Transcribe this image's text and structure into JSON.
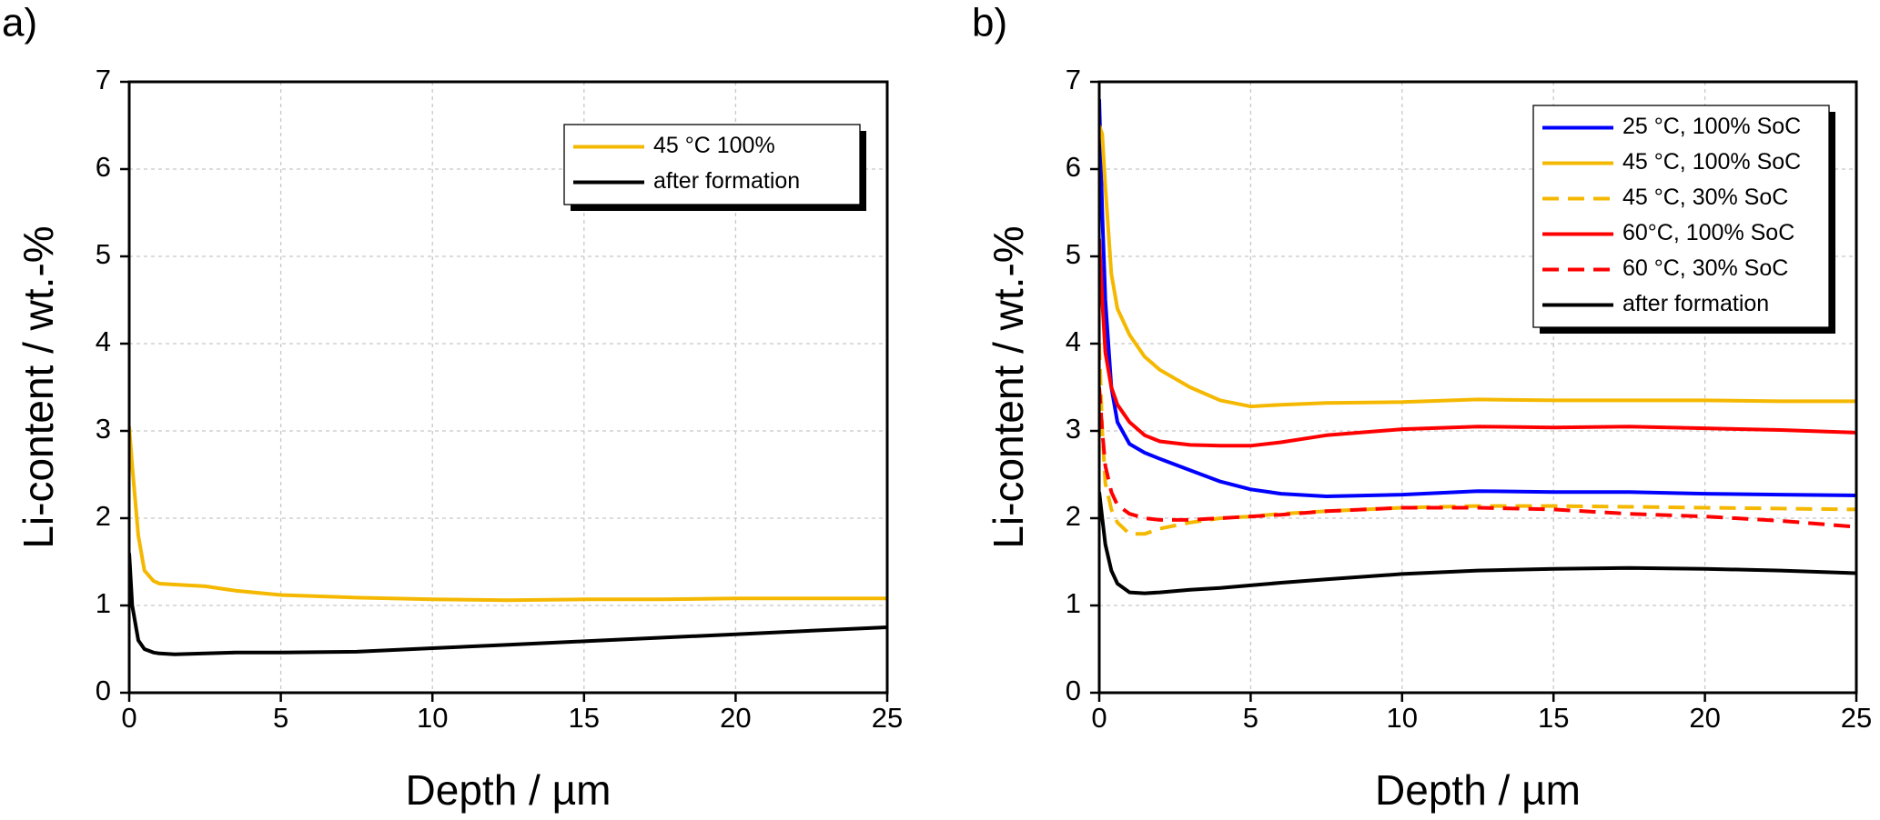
{
  "chart_data": [
    {
      "type": "line",
      "panel_label": "a)",
      "x_label": "Depth / µm",
      "y_label": "Li-content / wt.-%",
      "x": [
        0,
        0.1,
        0.3,
        0.5,
        0.8,
        1,
        1.5,
        2.5,
        3.5,
        5,
        7.5,
        10,
        12.5,
        15,
        17.5,
        20,
        22.5,
        25
      ],
      "series": [
        {
          "name": "45 °C 100%",
          "color": "#f5b800",
          "dashed": false,
          "values": [
            3.05,
            2.6,
            1.8,
            1.4,
            1.28,
            1.25,
            1.24,
            1.22,
            1.17,
            1.12,
            1.09,
            1.07,
            1.06,
            1.07,
            1.07,
            1.08,
            1.08,
            1.08
          ]
        },
        {
          "name": "after formation",
          "color": "#000000",
          "dashed": false,
          "values": [
            1.6,
            1.0,
            0.6,
            0.5,
            0.46,
            0.45,
            0.44,
            0.45,
            0.46,
            0.46,
            0.47,
            0.51,
            0.55,
            0.59,
            0.63,
            0.67,
            0.71,
            0.75
          ]
        }
      ],
      "xlim": [
        0,
        25
      ],
      "xticks": [
        0,
        5,
        10,
        15,
        20,
        25
      ],
      "ylim": [
        0,
        7
      ],
      "yticks": [
        0,
        1,
        2,
        3,
        4,
        5,
        6,
        7
      ],
      "grid": true,
      "legend": "top-right"
    },
    {
      "type": "line",
      "panel_label": "b)",
      "x_label": "Depth / µm",
      "y_label": "Li-content / wt.-%",
      "x": [
        0,
        0.1,
        0.2,
        0.4,
        0.6,
        1,
        1.5,
        2,
        3,
        4,
        5,
        6,
        7.5,
        10,
        12.5,
        15,
        17.5,
        20,
        22.5,
        25
      ],
      "series": [
        {
          "name": "25 °C, 100% SoC",
          "color": "#0000ff",
          "dashed": false,
          "values": [
            6.8,
            5.5,
            4.5,
            3.5,
            3.1,
            2.85,
            2.75,
            2.68,
            2.55,
            2.42,
            2.33,
            2.28,
            2.25,
            2.27,
            2.31,
            2.3,
            2.3,
            2.28,
            2.27,
            2.26
          ]
        },
        {
          "name": "45 °C, 100% SoC",
          "color": "#f5b800",
          "dashed": false,
          "values": [
            6.5,
            6.4,
            5.8,
            4.8,
            4.4,
            4.1,
            3.85,
            3.7,
            3.5,
            3.35,
            3.28,
            3.3,
            3.32,
            3.33,
            3.36,
            3.35,
            3.35,
            3.35,
            3.34,
            3.34
          ]
        },
        {
          "name": "45 °C, 30% SoC",
          "color": "#f5b800",
          "dashed": true,
          "values": [
            4.0,
            3.0,
            2.4,
            2.1,
            1.95,
            1.82,
            1.82,
            1.88,
            1.95,
            2.0,
            2.02,
            2.05,
            2.08,
            2.12,
            2.14,
            2.14,
            2.13,
            2.12,
            2.11,
            2.1
          ]
        },
        {
          "name": "60°C, 100% SoC",
          "color": "#ff0000",
          "dashed": false,
          "values": [
            5.2,
            4.5,
            3.9,
            3.5,
            3.3,
            3.1,
            2.95,
            2.88,
            2.84,
            2.83,
            2.83,
            2.87,
            2.95,
            3.02,
            3.05,
            3.04,
            3.05,
            3.03,
            3.01,
            2.98
          ]
        },
        {
          "name": "60 °C, 30% SoC",
          "color": "#ff0000",
          "dashed": true,
          "values": [
            3.5,
            3.0,
            2.6,
            2.3,
            2.15,
            2.05,
            2.0,
            1.98,
            1.98,
            2.0,
            2.02,
            2.04,
            2.08,
            2.12,
            2.12,
            2.1,
            2.05,
            2.02,
            1.97,
            1.9
          ]
        },
        {
          "name": "after formation",
          "color": "#000000",
          "dashed": false,
          "values": [
            2.3,
            2.0,
            1.7,
            1.4,
            1.25,
            1.15,
            1.14,
            1.15,
            1.18,
            1.2,
            1.23,
            1.26,
            1.3,
            1.36,
            1.4,
            1.42,
            1.43,
            1.42,
            1.4,
            1.37
          ]
        }
      ],
      "xlim": [
        0,
        25
      ],
      "xticks": [
        0,
        5,
        10,
        15,
        20,
        25
      ],
      "ylim": [
        0,
        7
      ],
      "yticks": [
        0,
        1,
        2,
        3,
        4,
        5,
        6,
        7
      ],
      "grid": true,
      "legend": "top-right"
    }
  ]
}
